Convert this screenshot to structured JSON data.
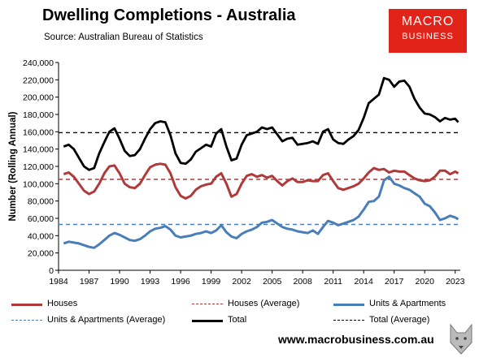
{
  "header": {
    "title": "Dwelling Completions - Australia",
    "source": "Source: Australian Bureau of Statistics",
    "logo_line1": "MACRO",
    "logo_line2": "BUSINESS"
  },
  "footer": {
    "url": "www.macrobusiness.com.au"
  },
  "chart_data": {
    "type": "line",
    "title": "Dwelling Completions - Australia",
    "ylabel": "Number (Rolling Annual)",
    "xlabel": "",
    "xlim": [
      1984,
      2023.5
    ],
    "ylim": [
      0,
      240000
    ],
    "x_ticks": [
      1984,
      1987,
      1990,
      1993,
      1996,
      1999,
      2002,
      2005,
      2008,
      2011,
      2014,
      2017,
      2020,
      2023
    ],
    "y_ticks": [
      0,
      20000,
      40000,
      60000,
      80000,
      100000,
      120000,
      140000,
      160000,
      180000,
      200000,
      220000,
      240000
    ],
    "y_tick_labels": [
      "0",
      "20,000",
      "40,000",
      "60,000",
      "80,000",
      "100,000",
      "120,000",
      "140,000",
      "160,000",
      "180,000",
      "200,000",
      "220,000",
      "240,000"
    ],
    "grid": false,
    "legend_position": "bottom",
    "series": [
      {
        "name": "Houses",
        "color": "#b03a3a",
        "style": "solid",
        "points": [
          [
            1984.5,
            111000
          ],
          [
            1985,
            113000
          ],
          [
            1985.5,
            108000
          ],
          [
            1986,
            100000
          ],
          [
            1986.5,
            92000
          ],
          [
            1987,
            88000
          ],
          [
            1987.5,
            91000
          ],
          [
            1988,
            100000
          ],
          [
            1988.5,
            112000
          ],
          [
            1989,
            120000
          ],
          [
            1989.5,
            121000
          ],
          [
            1990,
            112000
          ],
          [
            1990.5,
            100000
          ],
          [
            1991,
            96000
          ],
          [
            1991.5,
            95000
          ],
          [
            1992,
            100000
          ],
          [
            1992.5,
            110000
          ],
          [
            1993,
            119000
          ],
          [
            1993.5,
            122000
          ],
          [
            1994,
            123000
          ],
          [
            1994.5,
            122000
          ],
          [
            1995,
            112000
          ],
          [
            1995.5,
            96000
          ],
          [
            1996,
            86000
          ],
          [
            1996.5,
            83000
          ],
          [
            1997,
            86000
          ],
          [
            1997.5,
            93000
          ],
          [
            1998,
            97000
          ],
          [
            1998.5,
            99000
          ],
          [
            1999,
            100000
          ],
          [
            1999.5,
            108000
          ],
          [
            2000,
            112000
          ],
          [
            2000.5,
            100000
          ],
          [
            2001,
            85000
          ],
          [
            2001.5,
            88000
          ],
          [
            2002,
            100000
          ],
          [
            2002.5,
            109000
          ],
          [
            2003,
            111000
          ],
          [
            2003.5,
            108000
          ],
          [
            2004,
            110000
          ],
          [
            2004.5,
            107000
          ],
          [
            2005,
            109000
          ],
          [
            2005.5,
            103000
          ],
          [
            2006,
            98000
          ],
          [
            2006.5,
            103000
          ],
          [
            2007,
            106000
          ],
          [
            2007.5,
            102000
          ],
          [
            2008,
            102000
          ],
          [
            2008.5,
            104000
          ],
          [
            2009,
            103000
          ],
          [
            2009.5,
            103000
          ],
          [
            2010,
            110000
          ],
          [
            2010.5,
            112000
          ],
          [
            2011,
            103000
          ],
          [
            2011.5,
            95000
          ],
          [
            2012,
            93000
          ],
          [
            2012.5,
            95000
          ],
          [
            2013,
            97000
          ],
          [
            2013.5,
            100000
          ],
          [
            2014,
            106000
          ],
          [
            2014.5,
            113000
          ],
          [
            2015,
            118000
          ],
          [
            2015.5,
            116000
          ],
          [
            2016,
            117000
          ],
          [
            2016.5,
            113000
          ],
          [
            2017,
            115000
          ],
          [
            2017.5,
            114000
          ],
          [
            2018,
            114000
          ],
          [
            2018.5,
            110000
          ],
          [
            2019,
            106000
          ],
          [
            2019.5,
            104000
          ],
          [
            2020,
            103000
          ],
          [
            2020.5,
            104000
          ],
          [
            2021,
            108000
          ],
          [
            2021.5,
            115000
          ],
          [
            2022,
            115000
          ],
          [
            2022.5,
            111000
          ],
          [
            2023,
            114000
          ],
          [
            2023.3,
            112000
          ]
        ]
      },
      {
        "name": "Houses (Average)",
        "color": "#b03a3a",
        "style": "dashed",
        "points": [
          [
            1984,
            105000
          ],
          [
            2023.5,
            105000
          ]
        ]
      },
      {
        "name": "Units & Apartments",
        "color": "#4a7ebb",
        "style": "solid",
        "points": [
          [
            1984.5,
            31000
          ],
          [
            1985,
            33000
          ],
          [
            1985.5,
            32000
          ],
          [
            1986,
            31000
          ],
          [
            1986.5,
            29000
          ],
          [
            1987,
            27000
          ],
          [
            1987.5,
            26000
          ],
          [
            1988,
            30000
          ],
          [
            1988.5,
            35000
          ],
          [
            1989,
            40000
          ],
          [
            1989.5,
            43000
          ],
          [
            1990,
            41000
          ],
          [
            1990.5,
            38000
          ],
          [
            1991,
            35000
          ],
          [
            1991.5,
            34000
          ],
          [
            1992,
            36000
          ],
          [
            1992.5,
            40000
          ],
          [
            1993,
            45000
          ],
          [
            1993.5,
            48000
          ],
          [
            1994,
            49000
          ],
          [
            1994.5,
            51000
          ],
          [
            1995,
            47000
          ],
          [
            1995.5,
            40000
          ],
          [
            1996,
            38000
          ],
          [
            1996.5,
            39000
          ],
          [
            1997,
            40000
          ],
          [
            1997.5,
            42000
          ],
          [
            1998,
            43000
          ],
          [
            1998.5,
            45000
          ],
          [
            1999,
            43000
          ],
          [
            1999.5,
            46000
          ],
          [
            2000,
            52000
          ],
          [
            2000.5,
            44000
          ],
          [
            2001,
            39000
          ],
          [
            2001.5,
            37000
          ],
          [
            2002,
            42000
          ],
          [
            2002.5,
            45000
          ],
          [
            2003,
            47000
          ],
          [
            2003.5,
            50000
          ],
          [
            2004,
            55000
          ],
          [
            2004.5,
            56000
          ],
          [
            2005,
            58000
          ],
          [
            2005.5,
            54000
          ],
          [
            2006,
            50000
          ],
          [
            2006.5,
            48000
          ],
          [
            2007,
            47000
          ],
          [
            2007.5,
            45000
          ],
          [
            2008,
            44000
          ],
          [
            2008.5,
            43000
          ],
          [
            2009,
            46000
          ],
          [
            2009.5,
            42000
          ],
          [
            2010,
            50000
          ],
          [
            2010.5,
            57000
          ],
          [
            2011,
            55000
          ],
          [
            2011.5,
            52000
          ],
          [
            2012,
            54000
          ],
          [
            2012.5,
            56000
          ],
          [
            2013,
            58000
          ],
          [
            2013.5,
            62000
          ],
          [
            2014,
            70000
          ],
          [
            2014.5,
            79000
          ],
          [
            2015,
            80000
          ],
          [
            2015.5,
            85000
          ],
          [
            2016,
            104000
          ],
          [
            2016.5,
            108000
          ],
          [
            2017,
            100000
          ],
          [
            2017.5,
            98000
          ],
          [
            2018,
            95000
          ],
          [
            2018.5,
            93000
          ],
          [
            2019,
            89000
          ],
          [
            2019.5,
            85000
          ],
          [
            2020,
            77000
          ],
          [
            2020.5,
            74000
          ],
          [
            2021,
            67000
          ],
          [
            2021.5,
            58000
          ],
          [
            2022,
            60000
          ],
          [
            2022.5,
            63000
          ],
          [
            2023,
            61000
          ],
          [
            2023.3,
            59000
          ]
        ]
      },
      {
        "name": "Units & Apartments (Average)",
        "color": "#4a7ebb",
        "style": "dashed",
        "points": [
          [
            1984,
            53000
          ],
          [
            2023.5,
            53000
          ]
        ]
      },
      {
        "name": "Total",
        "color": "#000000",
        "style": "solid",
        "points": [
          [
            1984.5,
            143000
          ],
          [
            1985,
            145000
          ],
          [
            1985.5,
            140000
          ],
          [
            1986,
            130000
          ],
          [
            1986.5,
            120000
          ],
          [
            1987,
            116000
          ],
          [
            1987.5,
            118000
          ],
          [
            1988,
            135000
          ],
          [
            1988.5,
            148000
          ],
          [
            1989,
            160000
          ],
          [
            1989.5,
            164000
          ],
          [
            1990,
            152000
          ],
          [
            1990.5,
            138000
          ],
          [
            1991,
            132000
          ],
          [
            1991.5,
            133000
          ],
          [
            1992,
            140000
          ],
          [
            1992.5,
            152000
          ],
          [
            1993,
            163000
          ],
          [
            1993.5,
            170000
          ],
          [
            1994,
            172000
          ],
          [
            1994.5,
            171000
          ],
          [
            1995,
            156000
          ],
          [
            1995.5,
            135000
          ],
          [
            1996,
            124000
          ],
          [
            1996.5,
            123000
          ],
          [
            1997,
            128000
          ],
          [
            1997.5,
            137000
          ],
          [
            1998,
            141000
          ],
          [
            1998.5,
            145000
          ],
          [
            1999,
            143000
          ],
          [
            1999.5,
            158000
          ],
          [
            2000,
            163000
          ],
          [
            2000.5,
            143000
          ],
          [
            2001,
            127000
          ],
          [
            2001.5,
            129000
          ],
          [
            2002,
            145000
          ],
          [
            2002.5,
            156000
          ],
          [
            2003,
            158000
          ],
          [
            2003.5,
            160000
          ],
          [
            2004,
            165000
          ],
          [
            2004.5,
            163000
          ],
          [
            2005,
            165000
          ],
          [
            2005.5,
            157000
          ],
          [
            2006,
            149000
          ],
          [
            2006.5,
            152000
          ],
          [
            2007,
            153000
          ],
          [
            2007.5,
            145000
          ],
          [
            2008,
            146000
          ],
          [
            2008.5,
            147000
          ],
          [
            2009,
            149000
          ],
          [
            2009.5,
            146000
          ],
          [
            2010,
            160000
          ],
          [
            2010.5,
            163000
          ],
          [
            2011,
            151000
          ],
          [
            2011.5,
            147000
          ],
          [
            2012,
            146000
          ],
          [
            2012.5,
            151000
          ],
          [
            2013,
            155000
          ],
          [
            2013.5,
            162000
          ],
          [
            2014,
            176000
          ],
          [
            2014.5,
            193000
          ],
          [
            2015,
            198000
          ],
          [
            2015.5,
            203000
          ],
          [
            2016,
            222000
          ],
          [
            2016.5,
            220000
          ],
          [
            2017,
            212000
          ],
          [
            2017.5,
            218000
          ],
          [
            2018,
            219000
          ],
          [
            2018.5,
            212000
          ],
          [
            2019,
            198000
          ],
          [
            2019.5,
            188000
          ],
          [
            2020,
            181000
          ],
          [
            2020.5,
            180000
          ],
          [
            2021,
            177000
          ],
          [
            2021.5,
            172000
          ],
          [
            2022,
            176000
          ],
          [
            2022.5,
            174000
          ],
          [
            2023,
            175000
          ],
          [
            2023.3,
            171000
          ]
        ]
      },
      {
        "name": "Total (Average)",
        "color": "#000000",
        "style": "dashed",
        "points": [
          [
            1984,
            159000
          ],
          [
            2023.5,
            159000
          ]
        ]
      }
    ]
  }
}
